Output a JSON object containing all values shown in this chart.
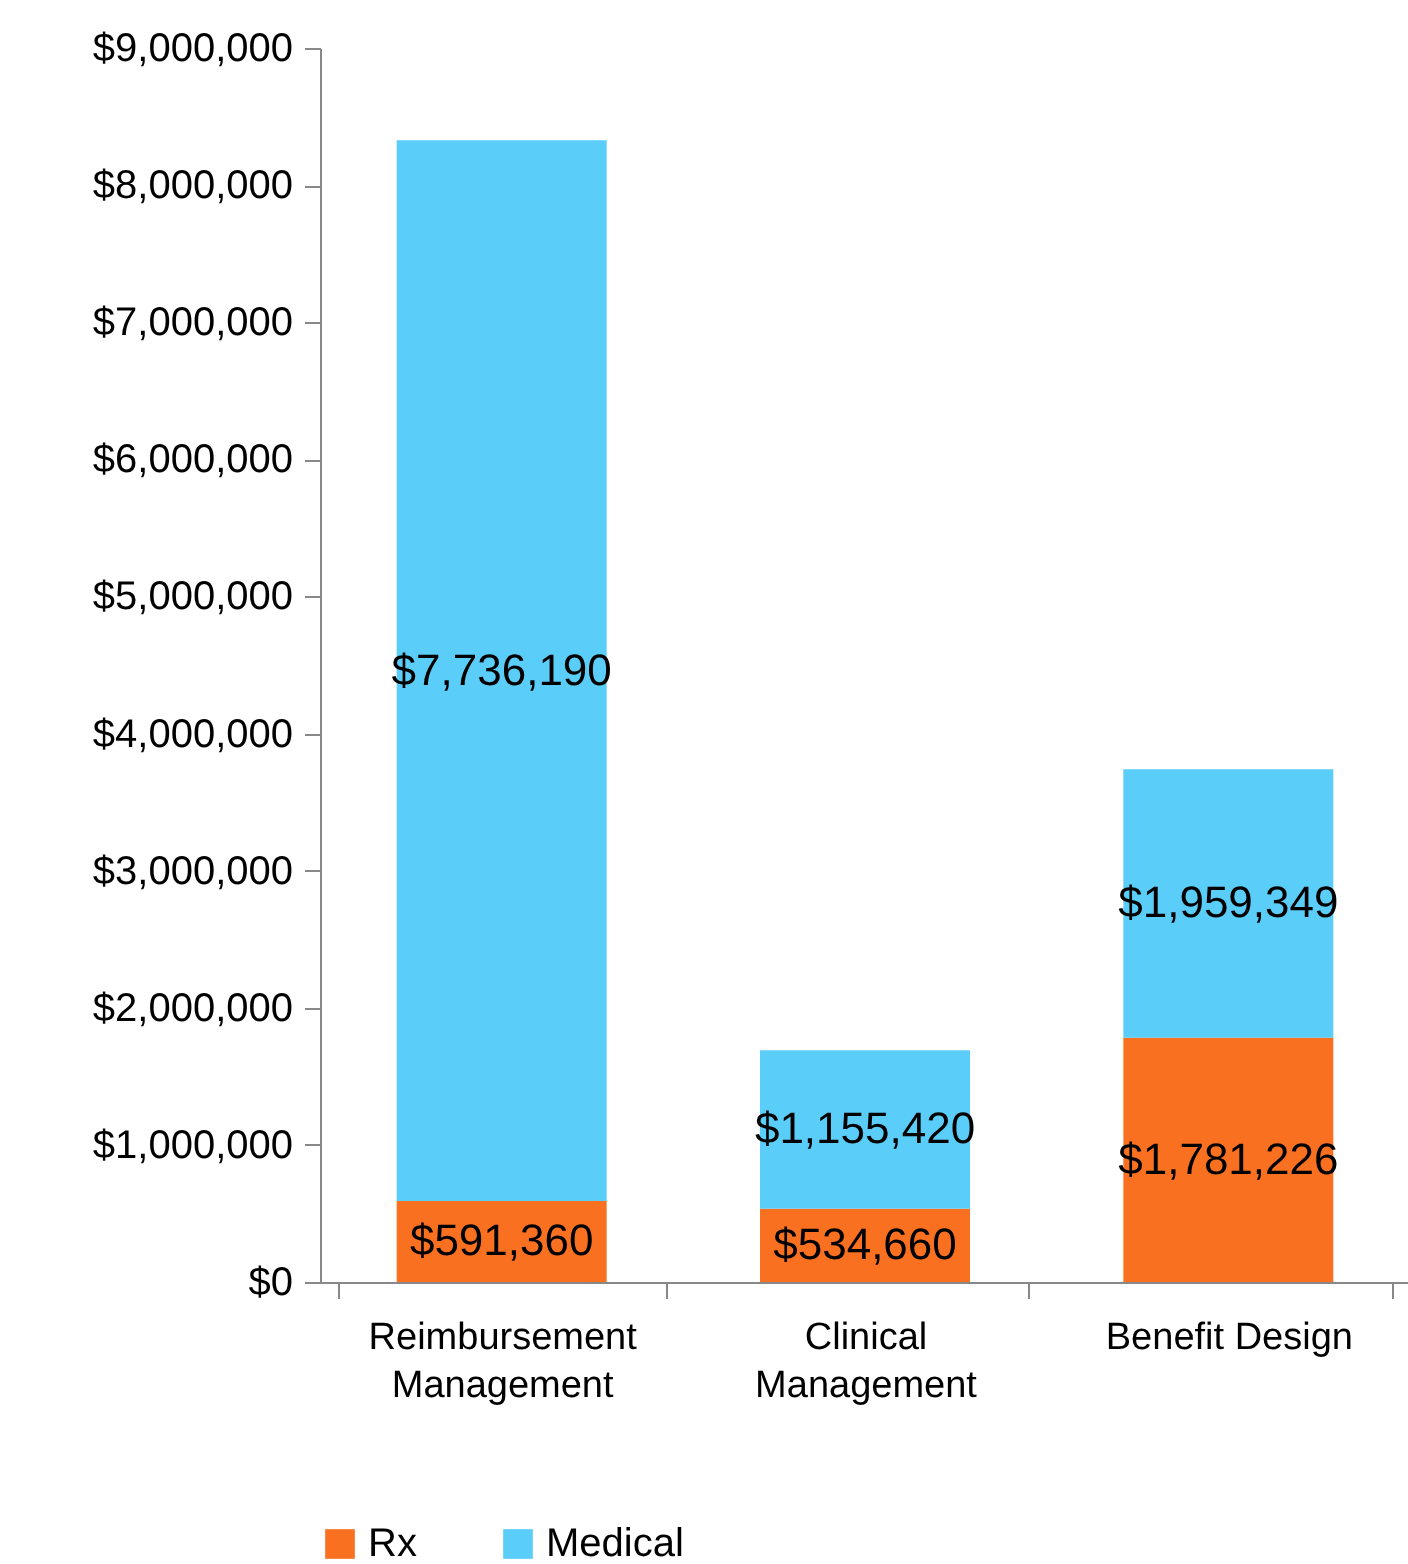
{
  "chart_data": {
    "type": "bar",
    "stacked": true,
    "categories": [
      "Reimbursement Management",
      "Clinical Management",
      "Benefit Design"
    ],
    "series": [
      {
        "name": "Rx",
        "color": "#fa7021",
        "values": [
          591360,
          534660,
          1781226
        ],
        "value_labels": [
          "$591,360",
          "$534,660",
          "$1,781,226"
        ]
      },
      {
        "name": "Medical",
        "color": "#5bcdf9",
        "values": [
          7736190,
          1155420,
          1959349
        ],
        "value_labels": [
          "$7,736,190",
          "$1,155,420",
          "$1,959,349"
        ]
      }
    ],
    "ylim": [
      0,
      9000000
    ],
    "yticks": [
      {
        "value": 0,
        "label": "$0"
      },
      {
        "value": 1000000,
        "label": "$1,000,000"
      },
      {
        "value": 2000000,
        "label": "$2,000,000"
      },
      {
        "value": 3000000,
        "label": "$3,000,000"
      },
      {
        "value": 4000000,
        "label": "$4,000,000"
      },
      {
        "value": 5000000,
        "label": "$5,000,000"
      },
      {
        "value": 6000000,
        "label": "$6,000,000"
      },
      {
        "value": 7000000,
        "label": "$7,000,000"
      },
      {
        "value": 8000000,
        "label": "$8,000,000"
      },
      {
        "value": 9000000,
        "label": "$9,000,000"
      }
    ],
    "grid": false,
    "legend": "bottom"
  }
}
